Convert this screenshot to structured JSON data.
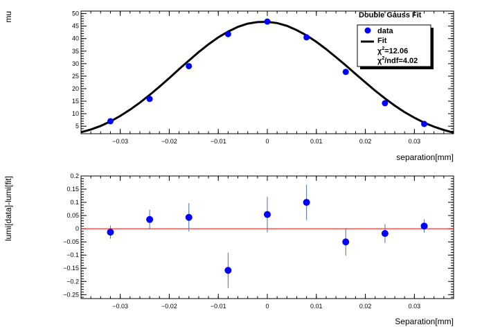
{
  "chart_data": [
    {
      "type": "scatter",
      "title": "Double Gauss Fit",
      "xlabel": "separation[mm]",
      "ylabel": "mu",
      "xlim": [
        -0.038,
        0.038
      ],
      "ylim": [
        2,
        51
      ],
      "xticks": [
        -0.03,
        -0.02,
        -0.01,
        0,
        0.01,
        0.02,
        0.03
      ],
      "xtick_labels": [
        "−0.03",
        "−0.02",
        "−0.01",
        "0",
        "0.01",
        "0.02",
        "0.03"
      ],
      "yticks": [
        5,
        10,
        15,
        20,
        25,
        30,
        35,
        40,
        45,
        50
      ],
      "ytick_labels": [
        "5",
        "10",
        "15",
        "20",
        "25",
        "30",
        "35",
        "40",
        "45",
        "50"
      ],
      "series": [
        {
          "name": "data",
          "color": "#0000ff",
          "x": [
            -0.032,
            -0.024,
            -0.016,
            -0.008,
            0.0,
            0.008,
            0.016,
            0.024,
            0.032
          ],
          "y": [
            7.0,
            15.9,
            29.0,
            41.8,
            46.8,
            40.5,
            26.7,
            14.2,
            5.9
          ]
        },
        {
          "name": "Fit",
          "color": "#000000",
          "type": "line",
          "x": [
            -0.038,
            -0.036,
            -0.034,
            -0.032,
            -0.03,
            -0.028,
            -0.026,
            -0.024,
            -0.022,
            -0.02,
            -0.018,
            -0.016,
            -0.014,
            -0.012,
            -0.01,
            -0.008,
            -0.006,
            -0.004,
            -0.002,
            0.0,
            0.002,
            0.004,
            0.006,
            0.008,
            0.01,
            0.012,
            0.014,
            0.016,
            0.018,
            0.02,
            0.022,
            0.024,
            0.026,
            0.028,
            0.03,
            0.032,
            0.034,
            0.036,
            0.038
          ],
          "y": [
            2.6,
            3.7,
            5.1,
            6.9,
            9.1,
            11.6,
            14.4,
            17.5,
            20.8,
            24.2,
            27.8,
            31.2,
            34.6,
            37.7,
            40.5,
            42.8,
            44.7,
            46.0,
            46.6,
            46.7,
            46.2,
            45.1,
            43.4,
            41.3,
            38.7,
            35.8,
            32.6,
            29.3,
            25.9,
            22.5,
            19.2,
            16.1,
            13.2,
            10.6,
            8.4,
            6.4,
            4.8,
            3.5,
            2.4
          ]
        }
      ],
      "legend": {
        "position": "top-right",
        "entries": [
          "data",
          "Fit"
        ],
        "chi2_label": "χ",
        "chi2_value": "=12.06",
        "chi2ndf_value": "/ndf=4.02",
        "sup": "2"
      }
    },
    {
      "type": "scatter",
      "xlabel": "Separation[mm]",
      "ylabel": "lumi[data]-lumi[fit]",
      "xlim": [
        -0.038,
        0.038
      ],
      "ylim": [
        -0.265,
        0.2
      ],
      "xticks": [
        -0.03,
        -0.02,
        -0.01,
        0,
        0.01,
        0.02,
        0.03
      ],
      "xtick_labels": [
        "−0.03",
        "−0.02",
        "−0.01",
        "0",
        "0.01",
        "0.02",
        "0.03"
      ],
      "yticks": [
        -0.25,
        -0.2,
        -0.15,
        -0.1,
        -0.05,
        0,
        0.05,
        0.1,
        0.15,
        0.2
      ],
      "ytick_labels": [
        "−0.25",
        "−0.2",
        "−0.15",
        "−0.1",
        "−0.05",
        "0",
        "0.05",
        "0.1",
        "0.15",
        "0.2"
      ],
      "reference_line": {
        "y": 0,
        "color": "#ff0000"
      },
      "series": [
        {
          "color": "#0000ff",
          "x": [
            -0.032,
            -0.024,
            -0.016,
            -0.008,
            0.0,
            0.008,
            0.016,
            0.024,
            0.032
          ],
          "y": [
            -0.013,
            0.035,
            0.043,
            -0.158,
            0.054,
            0.1,
            -0.05,
            -0.018,
            0.01
          ],
          "yerr": [
            0.025,
            0.037,
            0.054,
            0.067,
            0.068,
            0.067,
            0.052,
            0.036,
            0.025
          ]
        }
      ]
    }
  ]
}
